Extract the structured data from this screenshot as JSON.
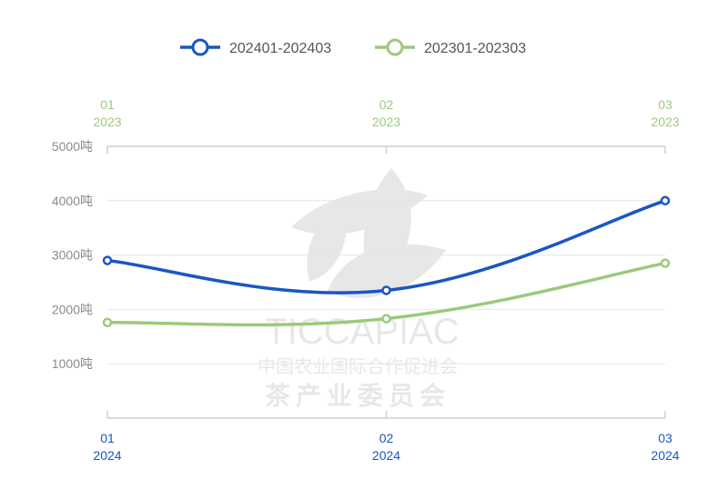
{
  "chart_data": {
    "type": "line",
    "title": "",
    "ylabel": "",
    "ylim": [
      0,
      5000
    ],
    "y_ticks": [
      "1000吨",
      "2000吨",
      "3000吨",
      "4000吨",
      "5000吨"
    ],
    "y_tick_values": [
      1000,
      2000,
      3000,
      4000,
      5000
    ],
    "grid": true,
    "legend_position": "top-center",
    "x_bottom": {
      "months": [
        "01",
        "02",
        "03"
      ],
      "year": "2024"
    },
    "x_top": {
      "months": [
        "01",
        "02",
        "03"
      ],
      "year": "2023"
    },
    "series": [
      {
        "name": "202401-202403",
        "color": "#1a56c4",
        "axis": "bottom",
        "values": [
          2900,
          2350,
          4000
        ]
      },
      {
        "name": "202301-202303",
        "color": "#9cc97c",
        "axis": "top",
        "values": [
          1760,
          1830,
          2850
        ]
      }
    ],
    "smooth": true
  },
  "watermark": {
    "logo_text": "TICCAPIAC",
    "line1": "中国农业国际合作促进会",
    "line2": "茶产业委员会"
  }
}
